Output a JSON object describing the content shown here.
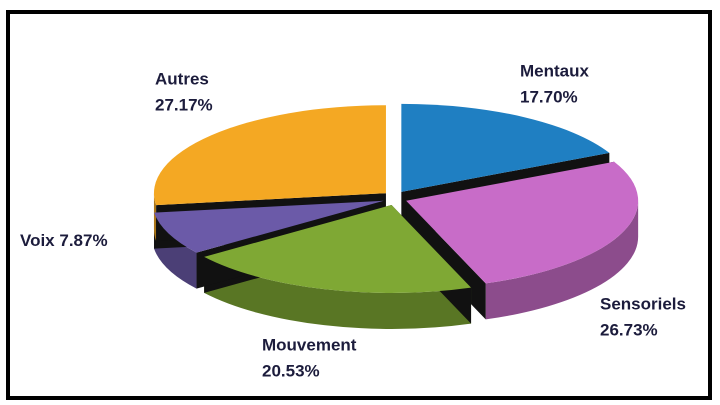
{
  "chart_data": {
    "type": "pie",
    "categories": [
      "Mentaux",
      "Sensoriels",
      "Mouvement",
      "Voix",
      "Autres"
    ],
    "values": [
      17.7,
      26.73,
      20.53,
      7.87,
      27.17
    ],
    "value_labels": [
      "17.70%",
      "26.73%",
      "20.53%",
      "7.87%",
      "27.17%"
    ],
    "colors": [
      "#1f7fc2",
      "#c86cc8",
      "#7fa834",
      "#6b5aa8",
      "#f4a823"
    ]
  }
}
